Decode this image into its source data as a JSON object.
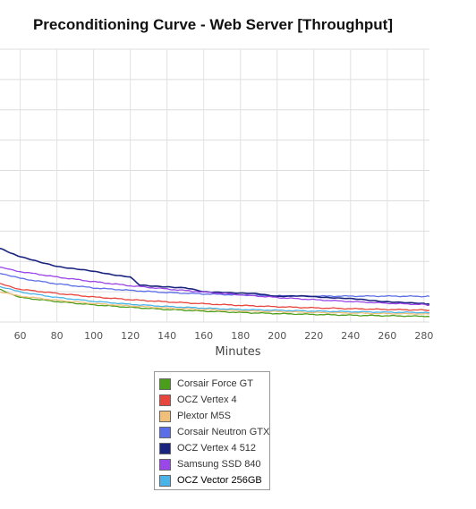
{
  "chart_data": {
    "type": "line",
    "title": "Preconditioning Curve - Web Server [Throughput]",
    "xlabel": "Minutes",
    "ylabel": "",
    "xlim": [
      49,
      283
    ],
    "ylim": [
      0,
      100
    ],
    "x_ticks": [
      60,
      80,
      100,
      120,
      140,
      160,
      180,
      200,
      220,
      240,
      260,
      280
    ],
    "grid": true,
    "legend_position": "bottom",
    "series": [
      {
        "name": "Corsair Force GT",
        "color": "#4a9e1a",
        "x": [
          49,
          60,
          80,
          100,
          120,
          140,
          160,
          180,
          200,
          220,
          240,
          260,
          280,
          283
        ],
        "y": [
          12,
          9,
          7.5,
          6.3,
          5.4,
          4.6,
          4.0,
          3.5,
          3.1,
          2.8,
          2.5,
          2.3,
          2.1,
          2.0
        ]
      },
      {
        "name": "OCZ Vertex 4",
        "color": "#e8453c",
        "x": [
          49,
          60,
          80,
          100,
          120,
          140,
          160,
          180,
          200,
          220,
          240,
          260,
          280,
          283
        ],
        "y": [
          14,
          12,
          10.5,
          9.2,
          8.2,
          7.4,
          6.7,
          6.1,
          5.6,
          5.2,
          4.9,
          4.6,
          4.4,
          4.3
        ]
      },
      {
        "name": "Plextor M5S",
        "color": "#f0c07a",
        "x": [
          49,
          60,
          80,
          100,
          120,
          140,
          160,
          180,
          200,
          220,
          240,
          260,
          280,
          283
        ],
        "y": [
          11,
          9.5,
          8.0,
          6.8,
          5.9,
          5.1,
          4.6,
          4.1,
          3.8,
          3.5,
          3.3,
          3.1,
          3.0,
          3.0
        ]
      },
      {
        "name": "Corsair Neutron GTX",
        "color": "#5b6ee8",
        "x": [
          49,
          60,
          80,
          100,
          120,
          140,
          160,
          180,
          200,
          220,
          240,
          260,
          280,
          283
        ],
        "y": [
          18,
          16,
          14.0,
          12.5,
          11.6,
          10.8,
          10.3,
          9.9,
          9.6,
          9.5,
          9.5,
          9.5,
          9.4,
          9.4
        ]
      },
      {
        "name": "OCZ Vertex 4 512",
        "color": "#1a237e",
        "x": [
          49,
          60,
          70,
          80,
          90,
          100,
          110,
          120,
          125,
          130,
          140,
          150,
          160,
          170,
          180,
          190,
          200,
          210,
          220,
          230,
          240,
          250,
          260,
          270,
          280,
          283
        ],
        "y": [
          27,
          24,
          22,
          20.5,
          19.5,
          18.5,
          17.5,
          16.5,
          13.5,
          13.2,
          13.0,
          12.5,
          11.0,
          11.0,
          10.5,
          10.3,
          9.5,
          9.5,
          9.3,
          9.0,
          8.5,
          8.0,
          7.5,
          7.0,
          6.8,
          6.5
        ]
      },
      {
        "name": "Samsung SSD 840",
        "color": "#9b46e8",
        "x": [
          49,
          60,
          80,
          100,
          120,
          140,
          160,
          180,
          200,
          220,
          240,
          260,
          280,
          283
        ],
        "y": [
          20,
          18.5,
          16.5,
          14.8,
          13.3,
          12.1,
          11.0,
          10.0,
          9.0,
          8.2,
          7.5,
          6.9,
          6.4,
          6.2
        ]
      },
      {
        "name": "OCZ Vector 256GB",
        "color": "#4ab4e8",
        "x": [
          49,
          60,
          80,
          100,
          120,
          140,
          160,
          180,
          200,
          220,
          240,
          260,
          280,
          283
        ],
        "y": [
          13,
          11,
          9.0,
          7.6,
          6.5,
          5.7,
          5.1,
          4.6,
          4.3,
          4.0,
          3.8,
          3.6,
          3.5,
          3.4
        ]
      }
    ]
  }
}
